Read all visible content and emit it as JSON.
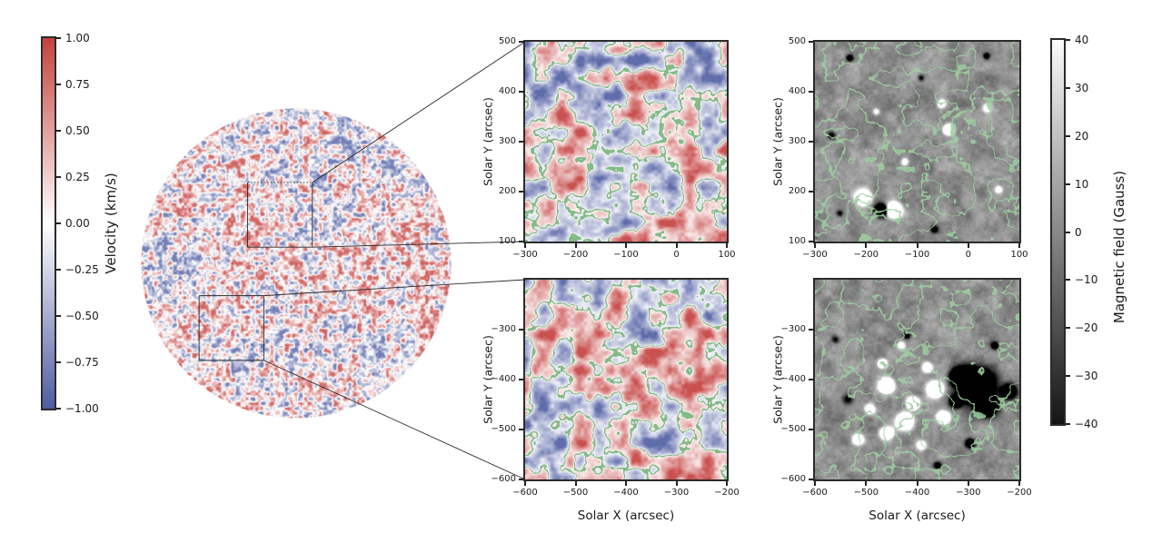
{
  "figure_description": "Solar full-disk Doppler velocity map with two zoomed insets: velocity maps (red/blue) and magnetograms (grayscale), both overlaid with green zero-velocity contours",
  "colorbars": {
    "velocity": {
      "label": "Velocity (km/s)",
      "ticks": [
        "1.00",
        "0.75",
        "0.50",
        "0.25",
        "0.00",
        "−0.25",
        "−0.50",
        "−0.75",
        "−1.00"
      ],
      "range": [
        -1,
        1
      ],
      "color_top": "#c4423d",
      "color_mid": "#ffffff",
      "color_bottom": "#4f5ca1"
    },
    "magnetic": {
      "label": "Magnetic field (Gauss)",
      "ticks": [
        "40",
        "30",
        "20",
        "10",
        "0",
        "−10",
        "−20",
        "−30",
        "−40"
      ],
      "range": [
        -40,
        40
      ],
      "color_top": "#fbfbfb",
      "color_bottom": "#151515"
    }
  },
  "style": {
    "contour_on_velocity": "#74b378",
    "contour_on_magnetic": "#9ccf9e",
    "spine_color": "#2b2b2b",
    "connector_color": "#2a2a2a",
    "velocity_red": "#c44240",
    "velocity_blue": "#5260a4",
    "magnetic_gray": "#8f8f8f"
  },
  "chart_data": [
    {
      "id": "full_disk_velocity",
      "type": "heatmap",
      "description": "Full solar disk Dopplergram, fine red/blue speckle on white; two rectangular inset boxes marked on disk and connected by lines to the zoom panels",
      "value_label": "Velocity (km/s)",
      "value_range": [
        -1,
        1
      ],
      "disk_radius_arcsec": 960,
      "inset_boxes": [
        {
          "name": "top inset",
          "xlim": [
            -300,
            100
          ],
          "ylim": [
            100,
            500
          ],
          "top_edge": "dotted"
        },
        {
          "name": "bottom inset",
          "xlim": [
            -600,
            -200
          ],
          "ylim": [
            -600,
            -200
          ],
          "top_edge": "solid"
        }
      ]
    },
    {
      "id": "top_velocity",
      "type": "heatmap",
      "kind": "velocity",
      "description": "Zoomed Doppler velocity map of top inset with green zero-velocity contours",
      "xlim": [
        -300,
        100
      ],
      "ylim": [
        100,
        500
      ],
      "xticks": [
        -300,
        -200,
        -100,
        0,
        100
      ],
      "yticks": [
        500,
        400,
        300,
        200,
        100
      ],
      "xlabel": "",
      "ylabel": "Solar Y (arcsec)",
      "value_label": "Velocity (km/s)",
      "value_range": [
        -1,
        1
      ],
      "contours": "green zero-velocity contour lines"
    },
    {
      "id": "top_magnetic",
      "type": "heatmap",
      "kind": "magnetic",
      "description": "Grayscale magnetogram of same top region, mostly quiet with a few small bright (positive) and dark (negative) magnetic elements; same green velocity contours overlaid",
      "xlim": [
        -300,
        100
      ],
      "ylim": [
        100,
        500
      ],
      "xticks": [
        -300,
        -200,
        -100,
        0,
        100
      ],
      "yticks": [
        500,
        400,
        300,
        200,
        100
      ],
      "xlabel": "",
      "ylabel": "Solar Y (arcsec)",
      "value_label": "Magnetic field (Gauss)",
      "value_range": [
        -40,
        40
      ],
      "contours": "green zero-velocity contour lines"
    },
    {
      "id": "bottom_velocity",
      "type": "heatmap",
      "kind": "velocity",
      "description": "Zoomed Doppler velocity map of bottom inset with green zero-velocity contours",
      "xlim": [
        -600,
        -200
      ],
      "ylim": [
        -600,
        -200
      ],
      "xticks": [
        -600,
        -500,
        -400,
        -300,
        -200
      ],
      "yticks": [
        -300,
        -400,
        -500,
        -600
      ],
      "xlabel": "Solar X (arcsec)",
      "ylabel": "Solar Y (arcsec)",
      "value_label": "Velocity (km/s)",
      "value_range": [
        -1,
        1
      ],
      "contours": "green zero-velocity contour lines"
    },
    {
      "id": "bottom_magnetic",
      "type": "heatmap",
      "kind": "magnetic",
      "description": "Grayscale magnetogram of bottom region containing an active region: cluster of bright white flux patches near (-500..-380, -450..-520) and a strong dark patch near (-320..-250, -400..-460); green velocity contours overlaid",
      "xlim": [
        -600,
        -200
      ],
      "ylim": [
        -600,
        -200
      ],
      "xticks": [
        -600,
        -500,
        -400,
        -300,
        -200
      ],
      "yticks": [
        -300,
        -400,
        -500,
        -600
      ],
      "xlabel": "Solar X (arcsec)",
      "ylabel": "Solar Y (arcsec)",
      "value_label": "Magnetic field (Gauss)",
      "value_range": [
        -40,
        40
      ],
      "contours": "green zero-velocity contour lines"
    }
  ]
}
